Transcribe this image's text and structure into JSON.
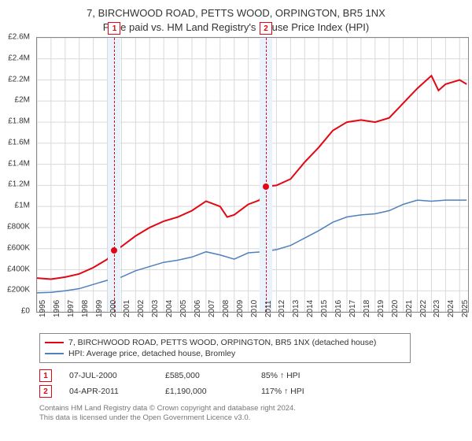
{
  "title_line1": "7, BIRCHWOOD ROAD, PETTS WOOD, ORPINGTON, BR5 1NX",
  "title_line2": "Price paid vs. HM Land Registry's House Price Index (HPI)",
  "chart": {
    "type": "line",
    "x_start_year": 1995,
    "x_end_year": 2025.6,
    "ylim": [
      0,
      2600000
    ],
    "ytick_step": 200000,
    "yticks": [
      "£0",
      "£200K",
      "£400K",
      "£600K",
      "£800K",
      "£1M",
      "£1.2M",
      "£1.4M",
      "£1.6M",
      "£1.8M",
      "£2M",
      "£2.2M",
      "£2.4M",
      "£2.6M"
    ],
    "xticks": [
      1995,
      1996,
      1997,
      1998,
      1999,
      2000,
      2001,
      2002,
      2003,
      2004,
      2005,
      2006,
      2007,
      2008,
      2009,
      2010,
      2011,
      2012,
      2013,
      2014,
      2015,
      2016,
      2017,
      2018,
      2019,
      2020,
      2021,
      2022,
      2023,
      2024,
      2025
    ],
    "grid_color": "#d9d9d9",
    "background_color": "#ffffff",
    "band_color": "#eaf3fb",
    "series": [
      {
        "name": "subject",
        "color": "#e30613",
        "width": 2,
        "points": [
          [
            1995.0,
            320000
          ],
          [
            1996.0,
            310000
          ],
          [
            1997.0,
            330000
          ],
          [
            1998.0,
            360000
          ],
          [
            1999.0,
            420000
          ],
          [
            2000.0,
            500000
          ],
          [
            2000.5,
            585000
          ],
          [
            2001.0,
            620000
          ],
          [
            2002.0,
            720000
          ],
          [
            2003.0,
            800000
          ],
          [
            2004.0,
            860000
          ],
          [
            2005.0,
            900000
          ],
          [
            2006.0,
            960000
          ],
          [
            2007.0,
            1050000
          ],
          [
            2008.0,
            1000000
          ],
          [
            2008.5,
            900000
          ],
          [
            2009.0,
            920000
          ],
          [
            2010.0,
            1020000
          ],
          [
            2010.8,
            1060000
          ],
          [
            2011.25,
            1190000
          ],
          [
            2012.0,
            1200000
          ],
          [
            2013.0,
            1260000
          ],
          [
            2014.0,
            1420000
          ],
          [
            2015.0,
            1560000
          ],
          [
            2016.0,
            1720000
          ],
          [
            2017.0,
            1800000
          ],
          [
            2018.0,
            1820000
          ],
          [
            2019.0,
            1800000
          ],
          [
            2020.0,
            1840000
          ],
          [
            2021.0,
            1980000
          ],
          [
            2022.0,
            2120000
          ],
          [
            2023.0,
            2240000
          ],
          [
            2023.5,
            2100000
          ],
          [
            2024.0,
            2160000
          ],
          [
            2025.0,
            2200000
          ],
          [
            2025.5,
            2160000
          ]
        ]
      },
      {
        "name": "hpi",
        "color": "#4f81bd",
        "width": 1.5,
        "points": [
          [
            1995.0,
            180000
          ],
          [
            1996.0,
            185000
          ],
          [
            1997.0,
            200000
          ],
          [
            1998.0,
            220000
          ],
          [
            1999.0,
            260000
          ],
          [
            2000.0,
            300000
          ],
          [
            2001.0,
            330000
          ],
          [
            2002.0,
            390000
          ],
          [
            2003.0,
            430000
          ],
          [
            2004.0,
            470000
          ],
          [
            2005.0,
            490000
          ],
          [
            2006.0,
            520000
          ],
          [
            2007.0,
            570000
          ],
          [
            2008.0,
            540000
          ],
          [
            2009.0,
            500000
          ],
          [
            2010.0,
            560000
          ],
          [
            2011.0,
            570000
          ],
          [
            2012.0,
            590000
          ],
          [
            2013.0,
            630000
          ],
          [
            2014.0,
            700000
          ],
          [
            2015.0,
            770000
          ],
          [
            2016.0,
            850000
          ],
          [
            2017.0,
            900000
          ],
          [
            2018.0,
            920000
          ],
          [
            2019.0,
            930000
          ],
          [
            2020.0,
            960000
          ],
          [
            2021.0,
            1020000
          ],
          [
            2022.0,
            1060000
          ],
          [
            2023.0,
            1050000
          ],
          [
            2024.0,
            1060000
          ],
          [
            2025.5,
            1060000
          ]
        ]
      }
    ],
    "sale_points": [
      {
        "x": 2000.5,
        "y": 585000
      },
      {
        "x": 2011.25,
        "y": 1190000
      }
    ],
    "markers": [
      {
        "n": "1",
        "x": 2000.5
      },
      {
        "n": "2",
        "x": 2011.25
      }
    ]
  },
  "legend": {
    "subject_label": "7, BIRCHWOOD ROAD, PETTS WOOD, ORPINGTON, BR5 1NX (detached house)",
    "hpi_label": "HPI: Average price, detached house, Bromley",
    "subject_color": "#e30613",
    "hpi_color": "#4f81bd"
  },
  "sales": [
    {
      "n": "1",
      "date": "07-JUL-2000",
      "price": "£585,000",
      "pct": "85% ↑ HPI"
    },
    {
      "n": "2",
      "date": "04-APR-2011",
      "price": "£1,190,000",
      "pct": "117% ↑ HPI"
    }
  ],
  "footer_line1": "Contains HM Land Registry data © Crown copyright and database right 2024.",
  "footer_line2": "This data is licensed under the Open Government Licence v3.0."
}
